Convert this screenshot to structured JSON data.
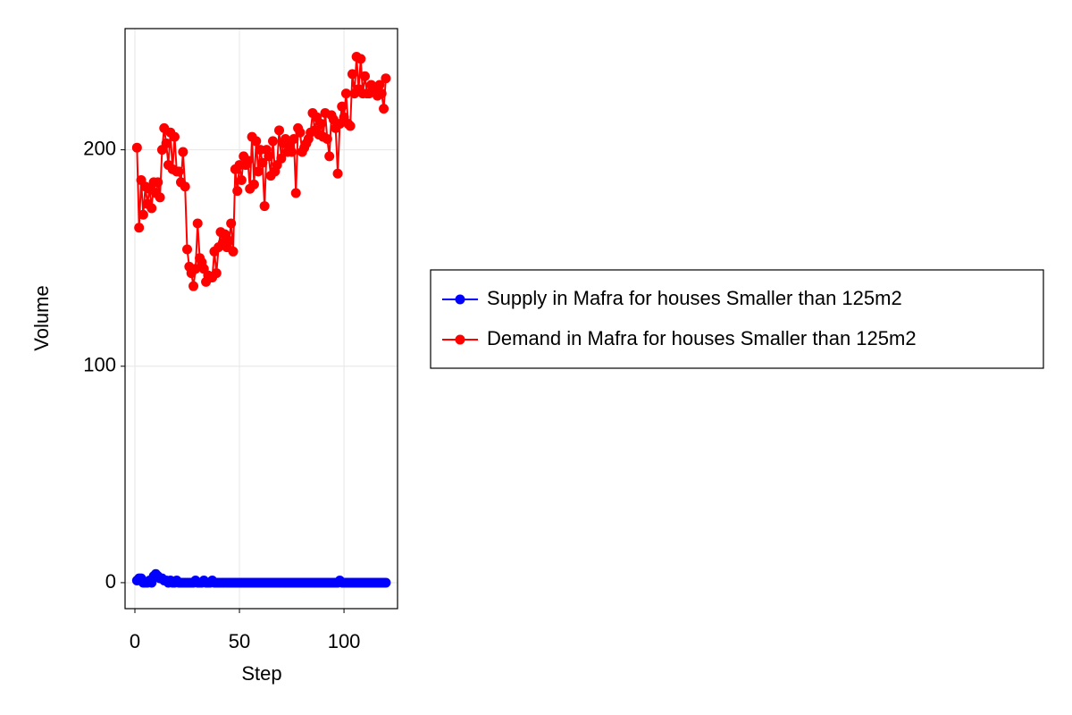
{
  "chart_data": {
    "type": "line",
    "x_label": "Step",
    "y_label": "Volume",
    "x": [
      1,
      2,
      3,
      4,
      5,
      6,
      7,
      8,
      9,
      10,
      11,
      12,
      13,
      14,
      15,
      16,
      17,
      18,
      19,
      20,
      21,
      22,
      23,
      24,
      25,
      26,
      27,
      28,
      29,
      30,
      31,
      32,
      33,
      34,
      35,
      36,
      37,
      38,
      39,
      40,
      41,
      42,
      43,
      44,
      45,
      46,
      47,
      48,
      49,
      50,
      51,
      52,
      53,
      54,
      55,
      56,
      57,
      58,
      59,
      60,
      61,
      62,
      63,
      64,
      65,
      66,
      67,
      68,
      69,
      70,
      71,
      72,
      73,
      74,
      75,
      76,
      77,
      78,
      79,
      80,
      81,
      82,
      83,
      84,
      85,
      86,
      87,
      88,
      89,
      90,
      91,
      92,
      93,
      94,
      95,
      96,
      97,
      98,
      99,
      100,
      101,
      102,
      103,
      104,
      105,
      106,
      107,
      108,
      109,
      110,
      111,
      112,
      113,
      114,
      115,
      116,
      117,
      118,
      119,
      120
    ],
    "series": [
      {
        "name": "Supply in Mafra for houses Smaller than 125m2",
        "color": "#0000ff",
        "values": [
          1,
          2,
          2,
          0,
          0,
          0,
          1,
          0,
          3,
          4,
          3,
          2,
          2,
          1,
          1,
          0,
          1,
          0,
          0,
          1,
          0,
          0,
          0,
          0,
          0,
          0,
          0,
          0,
          1,
          0,
          0,
          0,
          1,
          0,
          0,
          0,
          1,
          0,
          0,
          0,
          0,
          0,
          0,
          0,
          0,
          0,
          0,
          0,
          0,
          0,
          0,
          0,
          0,
          0,
          0,
          0,
          0,
          0,
          0,
          0,
          0,
          0,
          0,
          0,
          0,
          0,
          0,
          0,
          0,
          0,
          0,
          0,
          0,
          0,
          0,
          0,
          0,
          0,
          0,
          0,
          0,
          0,
          0,
          0,
          0,
          0,
          0,
          0,
          0,
          0,
          0,
          0,
          0,
          0,
          0,
          0,
          0,
          1,
          0,
          0,
          0,
          0,
          0,
          0,
          0,
          0,
          0,
          0,
          0,
          0,
          0,
          0,
          0,
          0,
          0,
          0,
          0,
          0,
          0,
          0
        ]
      },
      {
        "name": "Demand in Mafra for houses Smaller than 125m2",
        "color": "#ff0000",
        "values": [
          201,
          164,
          186,
          170,
          183,
          175,
          182,
          173,
          185,
          180,
          185,
          178,
          200,
          210,
          203,
          193,
          208,
          191,
          206,
          190,
          190,
          185,
          199,
          183,
          154,
          146,
          143,
          137,
          145,
          166,
          150,
          148,
          145,
          139,
          142,
          141,
          141,
          153,
          143,
          155,
          162,
          157,
          161,
          155,
          158,
          166,
          153,
          191,
          181,
          193,
          186,
          197,
          193,
          195,
          182,
          206,
          184,
          204,
          190,
          200,
          194,
          174,
          200,
          197,
          188,
          204,
          190,
          193,
          209,
          196,
          203,
          205,
          199,
          202,
          199,
          205,
          180,
          210,
          208,
          199,
          201,
          203,
          205,
          208,
          217,
          209,
          215,
          207,
          212,
          206,
          217,
          205,
          197,
          216,
          214,
          210,
          189,
          212,
          220,
          215,
          226,
          212,
          211,
          235,
          226,
          243,
          228,
          242,
          226,
          234,
          226,
          226,
          230,
          227,
          229,
          225,
          230,
          226,
          219,
          233
        ]
      }
    ],
    "xlim": [
      -4.7,
      125.6
    ],
    "ylim": [
      -12,
      256
    ],
    "xticks": [
      0,
      50,
      100
    ],
    "yticks": [
      0,
      100,
      200
    ],
    "grid": true,
    "legend": "right"
  }
}
